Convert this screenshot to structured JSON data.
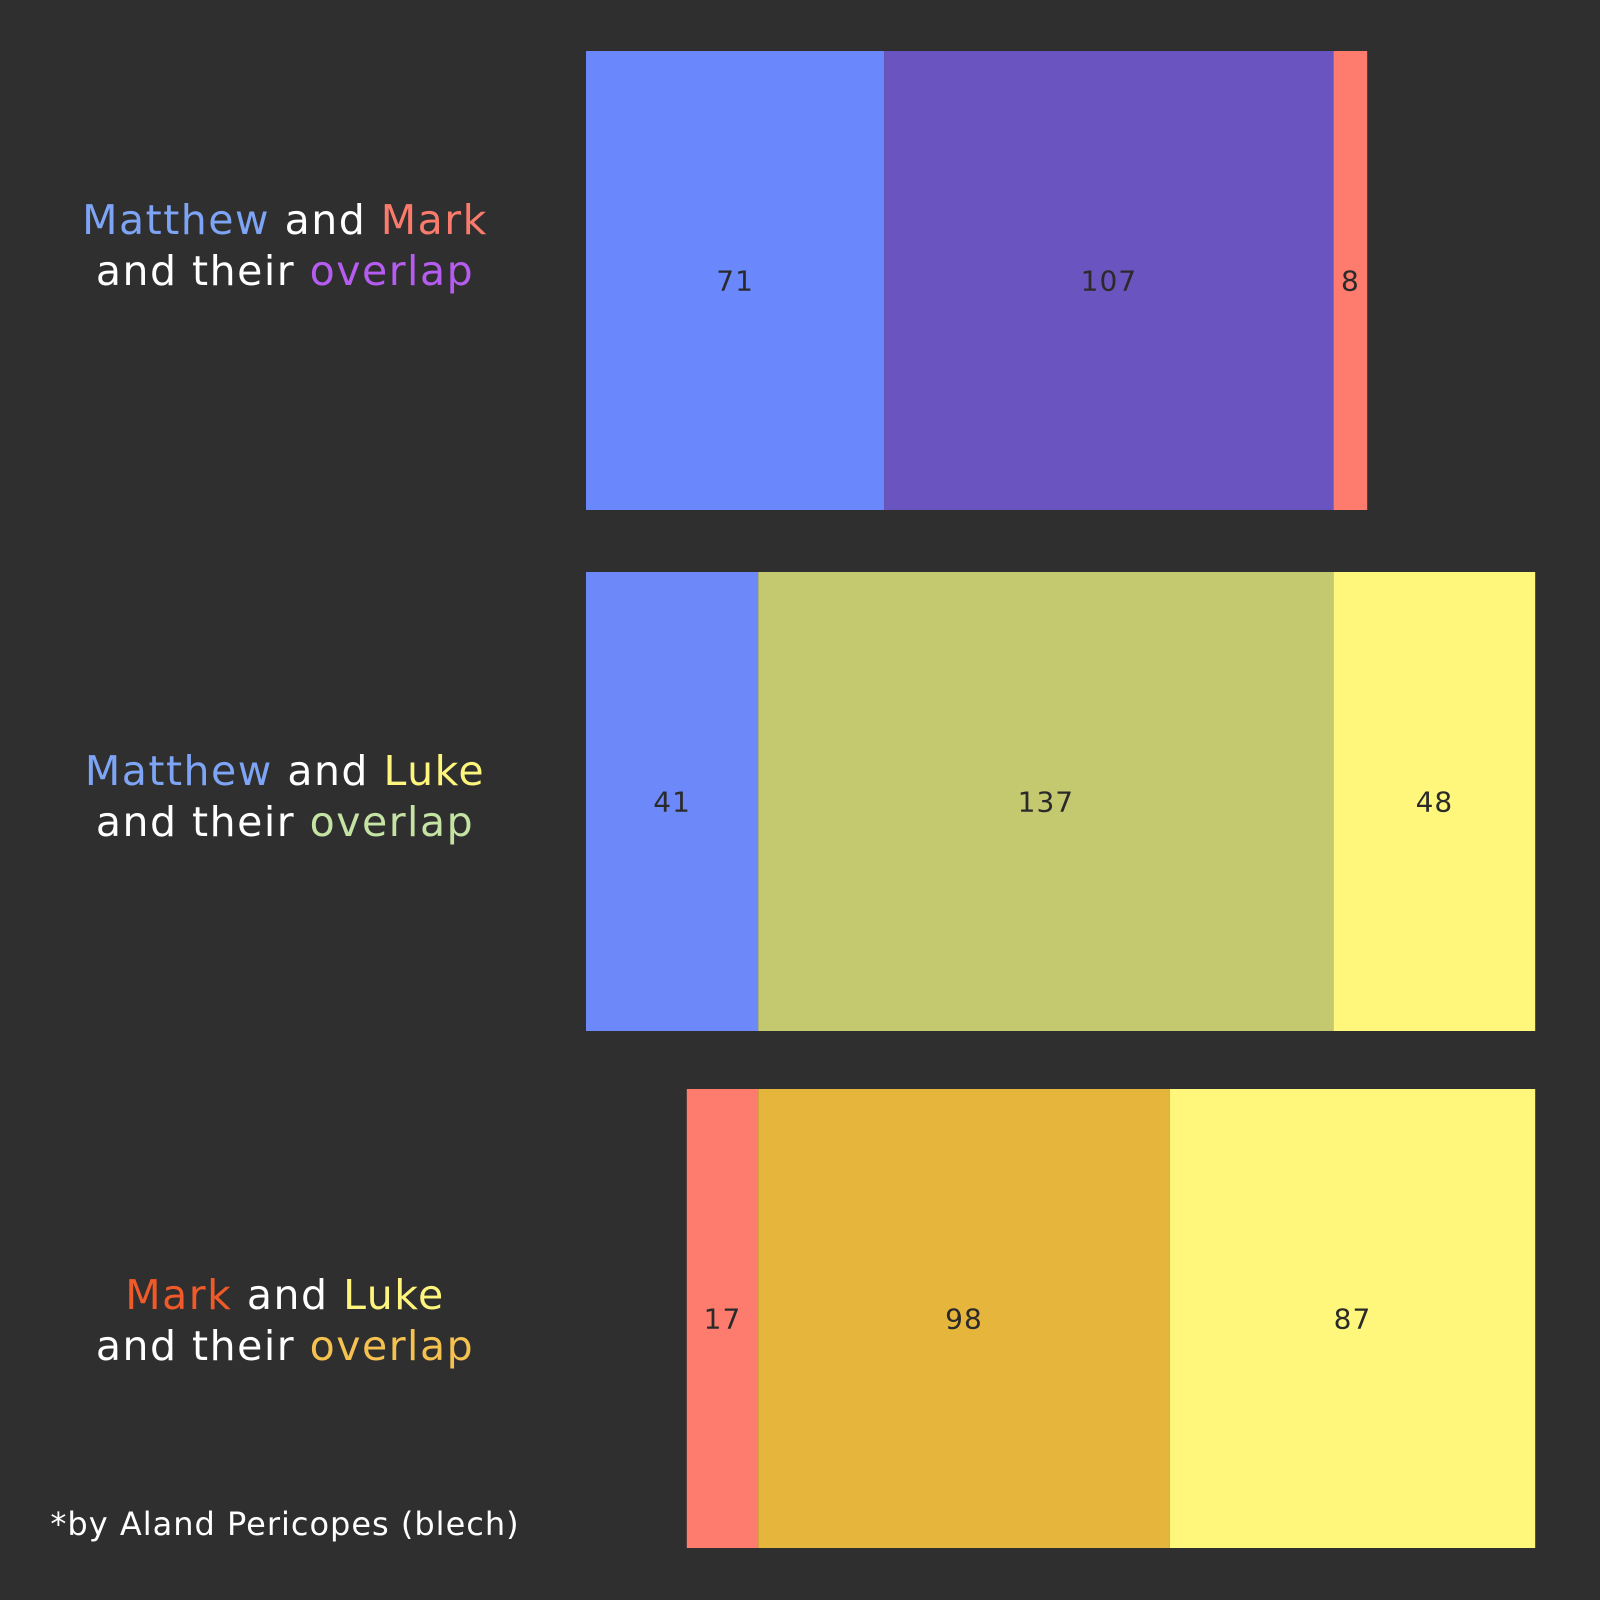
{
  "rows": [
    {
      "title": [
        [
          {
            "text": "Matthew",
            "color": "#7ea4f5"
          },
          {
            "text": " and ",
            "color": "#ffffff"
          },
          {
            "text": "Mark",
            "color": "#fa7b6c"
          }
        ],
        [
          {
            "text": "and their ",
            "color": "#ffffff"
          },
          {
            "text": "overlap",
            "color": "#b65cf0"
          }
        ]
      ]
    },
    {
      "title": [
        [
          {
            "text": "Matthew",
            "color": "#7ea4f5"
          },
          {
            "text": " and ",
            "color": "#ffffff"
          },
          {
            "text": "Luke",
            "color": "#fef57c"
          }
        ],
        [
          {
            "text": "and their ",
            "color": "#ffffff"
          },
          {
            "text": "overlap",
            "color": "#c5e3a3"
          }
        ]
      ]
    },
    {
      "title": [
        [
          {
            "text": "Mark",
            "color": "#f05a28"
          },
          {
            "text": " and ",
            "color": "#ffffff"
          },
          {
            "text": "Luke",
            "color": "#fef57c"
          }
        ],
        [
          {
            "text": "and their ",
            "color": "#ffffff"
          },
          {
            "text": "overlap",
            "color": "#f5c250"
          }
        ]
      ]
    }
  ],
  "footnote": "*by Aland Pericopes (blech)",
  "chart_data": [
    {
      "type": "bar",
      "orientation": "horizontal",
      "stacked": true,
      "segments": [
        {
          "value": 71,
          "label": "71",
          "color": "#6b87fc"
        },
        {
          "value": 107,
          "label": "107",
          "color": "#6a55c0"
        },
        {
          "value": 8,
          "label": "8",
          "color": "#fd7c6e"
        }
      ]
    },
    {
      "type": "bar",
      "orientation": "horizontal",
      "stacked": true,
      "segments": [
        {
          "value": 41,
          "label": "41",
          "color": "#6d89f9"
        },
        {
          "value": 137,
          "label": "137",
          "color": "#c4c86e"
        },
        {
          "value": 48,
          "label": "48",
          "color": "#fef77c"
        }
      ]
    },
    {
      "type": "bar",
      "orientation": "horizontal",
      "stacked": true,
      "segments": [
        {
          "value": 17,
          "label": "17",
          "color": "#fd7c6e"
        },
        {
          "value": 98,
          "label": "98",
          "color": "#e6b63c"
        },
        {
          "value": 87,
          "label": "87",
          "color": "#fef77c"
        }
      ]
    }
  ]
}
